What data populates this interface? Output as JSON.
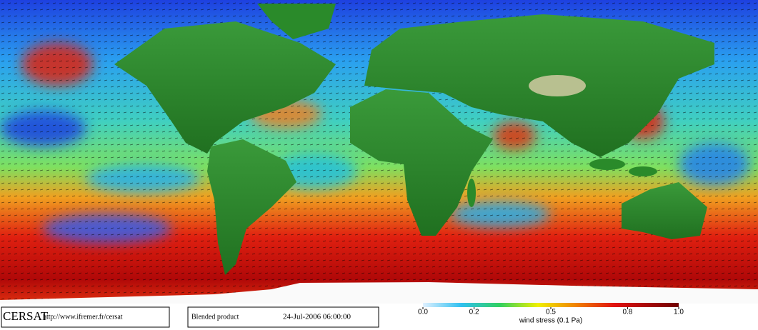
{
  "footer": {
    "logo": "CERSAT",
    "url": "http://www.ifremer.fr/cersat",
    "product": "Blended product",
    "date": "24-Jul-2006 06:00:00"
  },
  "colorbar": {
    "label": "wind stress (0.1 Pa)",
    "lim": [
      0,
      1
    ],
    "ticks": [
      {
        "value": 0,
        "label": "0.0"
      },
      {
        "value": 0.2,
        "label": "0.2"
      },
      {
        "value": 0.5,
        "label": "0.5"
      },
      {
        "value": 0.8,
        "label": "0.8"
      },
      {
        "value": 1,
        "label": "1.0"
      }
    ]
  }
}
